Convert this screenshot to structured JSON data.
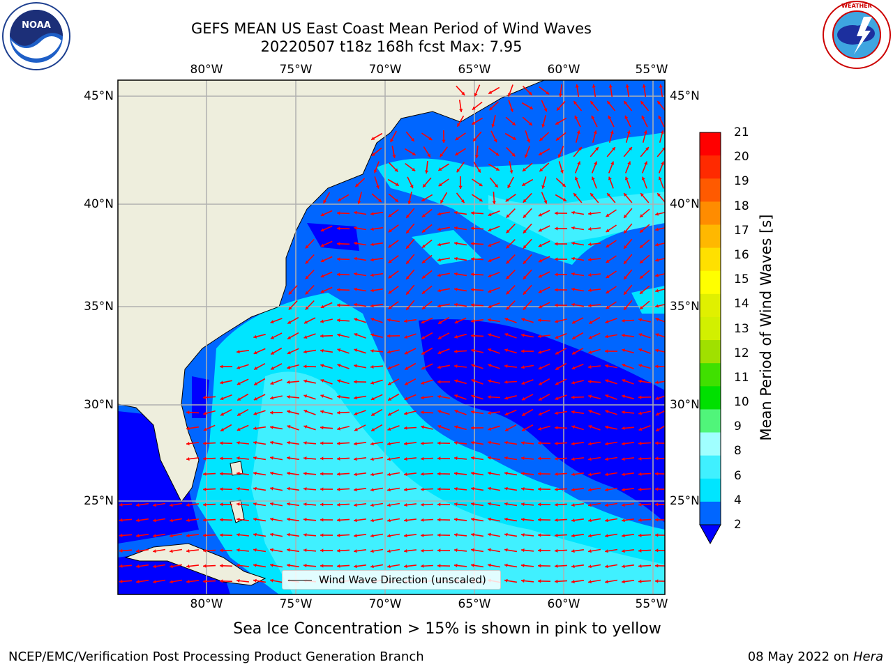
{
  "title": {
    "line1": "GEFS MEAN US East Coast Mean Period of Wind Waves",
    "line2": "20220507 t18z 168h fcst   Max: 7.95"
  },
  "logos": {
    "noaa": {
      "icon": "noaa-logo",
      "text": "NOAA",
      "ring_text": "NATIONAL OCEANIC AND ATMOSPHERIC ADMINISTRATION · U.S. DEPARTMENT OF COMMERCE"
    },
    "nws": {
      "icon": "nws-logo",
      "ring_text": "NATIONAL WEATHER SERVICE"
    }
  },
  "map": {
    "region": "US East Coast",
    "lon_labels": [
      "80°W",
      "75°W",
      "70°W",
      "65°W",
      "60°W",
      "55°W"
    ],
    "lat_labels": [
      "45°N",
      "40°N",
      "35°N",
      "30°N",
      "25°N"
    ],
    "land_color": "#eeeedd",
    "grid_color": "#b0b0b0",
    "arrow_color": "#ff0000"
  },
  "colorbar": {
    "label": "Mean Period of Wind Waves [s]",
    "ticks": [
      "2",
      "4",
      "6",
      "8",
      "9",
      "10",
      "11",
      "12",
      "13",
      "14",
      "15",
      "16",
      "17",
      "18",
      "19",
      "20",
      "21"
    ],
    "colors": [
      "#0066ff",
      "#00e5ff",
      "#40f0ff",
      "#a0ffff",
      "#50f57a",
      "#00e000",
      "#40e000",
      "#a0e000",
      "#d2f000",
      "#e0f000",
      "#ffff00",
      "#ffe000",
      "#ffb800",
      "#ff8c00",
      "#ff5a00",
      "#ff2a00",
      "#ff0000"
    ],
    "under_color": "#0000ff"
  },
  "legend": {
    "label": "Wind Wave Direction (unscaled)"
  },
  "footnote": "Sea Ice Concentration > 15% is shown in pink to yellow",
  "credits": {
    "left": "NCEP/EMC/Verification Post Processing Product Generation Branch",
    "date": "08 May 2022 on",
    "machine": "Hera"
  }
}
